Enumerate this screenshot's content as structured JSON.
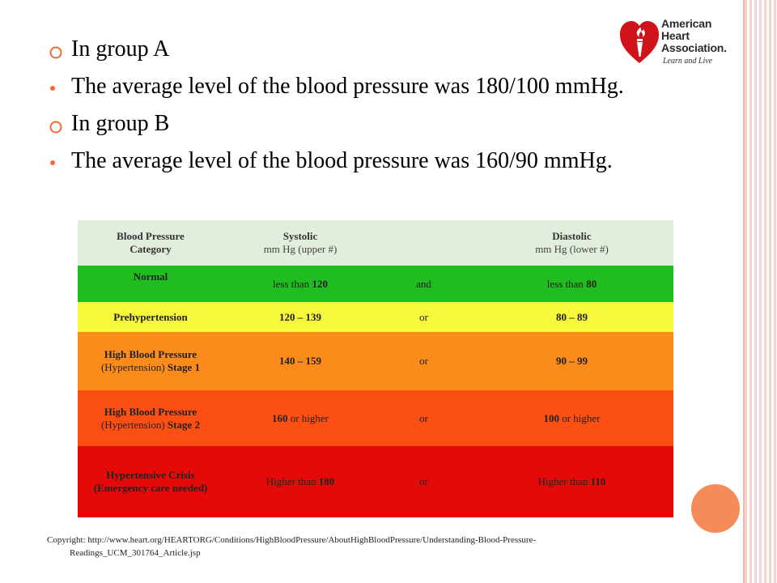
{
  "logo": {
    "line1": "American",
    "line2": "Heart",
    "line3": "Association.",
    "tagline": "Learn and Live"
  },
  "bullets": [
    {
      "type": "group",
      "text": "In group A"
    },
    {
      "type": "sub",
      "text": "The average level of the blood pressure was 180/100 mmHg."
    },
    {
      "type": "group",
      "text": "In group B"
    },
    {
      "type": "sub",
      "text": "The average level of the blood pressure was 160/90 mmHg."
    }
  ],
  "table": {
    "header": {
      "category_line1": "Blood Pressure",
      "category_line2": "Category",
      "systolic_title": "Systolic",
      "systolic_sub": "mm Hg (upper #)",
      "diastolic_title": "Diastolic",
      "diastolic_sub": "mm Hg (lower #)"
    },
    "rows": [
      {
        "category": "Normal",
        "systolic_prefix": "less than ",
        "systolic_value": "120",
        "systolic_suffix": "",
        "conjunction": "and",
        "diastolic_prefix": "less than ",
        "diastolic_value": "80",
        "diastolic_suffix": ""
      },
      {
        "category": "Prehypertension",
        "systolic_prefix": "",
        "systolic_value": "120 – 139",
        "systolic_suffix": "",
        "conjunction": "or",
        "diastolic_prefix": "",
        "diastolic_value": "80 – 89",
        "diastolic_suffix": ""
      },
      {
        "category_line1": "High Blood Pressure",
        "category_line2_prefix": "(Hypertension) ",
        "category_line2_bold": "Stage 1",
        "systolic_prefix": "",
        "systolic_value": "140 – 159",
        "systolic_suffix": "",
        "conjunction": "or",
        "diastolic_prefix": "",
        "diastolic_value": "90 – 99",
        "diastolic_suffix": ""
      },
      {
        "category_line1": "High Blood Pressure",
        "category_line2_prefix": "(Hypertension) ",
        "category_line2_bold": "Stage 2",
        "systolic_prefix": "",
        "systolic_value": "160",
        "systolic_suffix": " or higher",
        "conjunction": "or",
        "diastolic_prefix": "",
        "diastolic_value": "100",
        "diastolic_suffix": " or higher"
      },
      {
        "category_line1": "Hypertensive Crisis",
        "category_line2": "(Emergency care needed)",
        "systolic_prefix": "Higher than ",
        "systolic_value": "180",
        "systolic_suffix": "",
        "conjunction": "or",
        "diastolic_prefix": "Higher than ",
        "diastolic_value": "110",
        "diastolic_suffix": ""
      }
    ],
    "colors": {
      "header": "#e2eedd",
      "normal": "#1fbd1f",
      "prehypertension": "#f7f73c",
      "stage1": "#fb8c1c",
      "stage2": "#fb4f14",
      "crisis": "#e60909"
    }
  },
  "copyright": {
    "line1": "Copyright: http://www.heart.org/HEARTORG/Conditions/HighBloodPressure/AboutHighBloodPressure/Understanding-Blood-Pressure-",
    "line2": "Readings_UCM_301764_Article.jsp"
  },
  "icons": {
    "group_bullet": "hollow-orange-circle",
    "sub_bullet": "orange-dot",
    "logo": "heart-torch-icon"
  },
  "accent_color": "#f06a3a"
}
